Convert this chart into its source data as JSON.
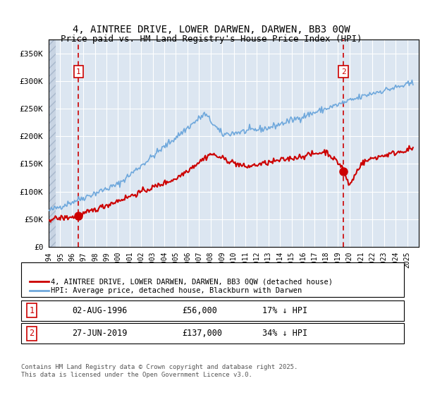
{
  "title_line1": "4, AINTREE DRIVE, LOWER DARWEN, DARWEN, BB3 0QW",
  "title_line2": "Price paid vs. HM Land Registry's House Price Index (HPI)",
  "ylim": [
    0,
    375000
  ],
  "yticks": [
    0,
    50000,
    100000,
    150000,
    200000,
    250000,
    300000,
    350000
  ],
  "ytick_labels": [
    "£0",
    "£50K",
    "£100K",
    "£150K",
    "£200K",
    "£250K",
    "£300K",
    "£350K"
  ],
  "sale1_date_num": 1996.58,
  "sale1_price": 56000,
  "sale1_label": "02-AUG-1996",
  "sale1_price_str": "£56,000",
  "sale1_pct": "17% ↓ HPI",
  "sale2_date_num": 2019.48,
  "sale2_price": 137000,
  "sale2_label": "27-JUN-2019",
  "sale2_price_str": "£137,000",
  "sale2_pct": "34% ↓ HPI",
  "hpi_color": "#6fa8dc",
  "price_color": "#cc0000",
  "vline_color": "#cc0000",
  "background_color": "#dce6f1",
  "grid_color": "#ffffff",
  "legend_label_price": "4, AINTREE DRIVE, LOWER DARWEN, DARWEN, BB3 0QW (detached house)",
  "legend_label_hpi": "HPI: Average price, detached house, Blackburn with Darwen",
  "footnote": "Contains HM Land Registry data © Crown copyright and database right 2025.\nThis data is licensed under the Open Government Licence v3.0.",
  "xmin": 1994,
  "xmax": 2026
}
